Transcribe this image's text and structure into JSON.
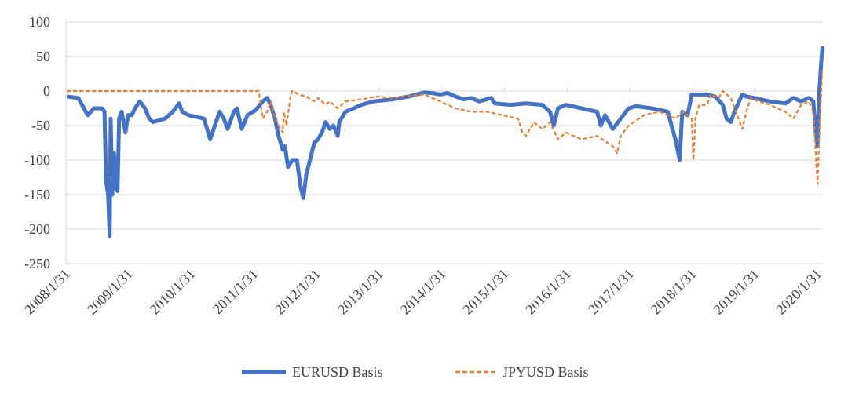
{
  "chart_data": {
    "type": "line",
    "title": "",
    "xlabel": "",
    "ylabel": "",
    "ylim": [
      -250,
      100
    ],
    "yticks": [
      100,
      50,
      0,
      -50,
      -100,
      -150,
      -200,
      -250
    ],
    "xlim": [
      "2008-01-31",
      "2020-03-02"
    ],
    "xtick_labels": [
      "2008/1/31",
      "2009/1/31",
      "2010/1/31",
      "2011/1/31",
      "2012/1/31",
      "2013/1/31",
      "2014/1/31",
      "2015/1/31",
      "2016/1/31",
      "2017/1/31",
      "2018/1/31",
      "2019/1/31",
      "2020/1/31"
    ],
    "xtick_dates": [
      "2008-01-31",
      "2009-01-31",
      "2010-01-31",
      "2011-01-31",
      "2012-01-31",
      "2013-01-31",
      "2014-01-31",
      "2015-01-31",
      "2016-01-31",
      "2017-01-31",
      "2018-01-31",
      "2019-01-31",
      "2020-01-31"
    ],
    "grid": true,
    "legend_position": "bottom",
    "series": [
      {
        "name": "EURUSD Basis",
        "color": "#4472C4",
        "style": "solid",
        "points": [
          [
            "2008-02-05",
            -8
          ],
          [
            "2008-04-12",
            -10
          ],
          [
            "2008-06-06",
            -35
          ],
          [
            "2008-07-12",
            -25
          ],
          [
            "2008-08-28",
            -25
          ],
          [
            "2008-09-12",
            -30
          ],
          [
            "2008-09-21",
            -130
          ],
          [
            "2008-10-03",
            -150
          ],
          [
            "2008-10-12",
            -210
          ],
          [
            "2008-10-18",
            -40
          ],
          [
            "2008-10-27",
            -150
          ],
          [
            "2008-11-06",
            -90
          ],
          [
            "2008-11-18",
            -140
          ],
          [
            "2008-11-27",
            -145
          ],
          [
            "2008-12-06",
            -40
          ],
          [
            "2008-12-21",
            -30
          ],
          [
            "2009-01-12",
            -60
          ],
          [
            "2009-01-27",
            -35
          ],
          [
            "2009-02-18",
            -35
          ],
          [
            "2009-03-09",
            -25
          ],
          [
            "2009-04-06",
            -15
          ],
          [
            "2009-05-06",
            -25
          ],
          [
            "2009-05-31",
            -40
          ],
          [
            "2009-06-21",
            -45
          ],
          [
            "2009-08-31",
            -40
          ],
          [
            "2009-10-15",
            -30
          ],
          [
            "2009-11-21",
            -18
          ],
          [
            "2009-12-09",
            -30
          ],
          [
            "2010-01-15",
            -35
          ],
          [
            "2010-04-15",
            -40
          ],
          [
            "2010-05-09",
            -60
          ],
          [
            "2010-05-21",
            -70
          ],
          [
            "2010-06-24",
            -45
          ],
          [
            "2010-07-15",
            -30
          ],
          [
            "2010-08-09",
            -40
          ],
          [
            "2010-08-31",
            -55
          ],
          [
            "2010-10-06",
            -30
          ],
          [
            "2010-10-24",
            -25
          ],
          [
            "2010-11-21",
            -55
          ],
          [
            "2010-12-24",
            -35
          ],
          [
            "2011-02-09",
            -28
          ],
          [
            "2011-03-24",
            -15
          ],
          [
            "2011-04-18",
            -10
          ],
          [
            "2011-05-09",
            -20
          ],
          [
            "2011-06-03",
            -40
          ],
          [
            "2011-06-24",
            -65
          ],
          [
            "2011-07-18",
            -85
          ],
          [
            "2011-07-31",
            -80
          ],
          [
            "2011-08-18",
            -110
          ],
          [
            "2011-09-12",
            -100
          ],
          [
            "2011-10-09",
            -100
          ],
          [
            "2011-10-31",
            -140
          ],
          [
            "2011-11-15",
            -155
          ],
          [
            "2011-12-03",
            -120
          ],
          [
            "2011-12-24",
            -100
          ],
          [
            "2012-01-18",
            -75
          ],
          [
            "2012-02-09",
            -70
          ],
          [
            "2012-03-03",
            -60
          ],
          [
            "2012-03-24",
            -45
          ],
          [
            "2012-04-18",
            -55
          ],
          [
            "2012-05-09",
            -50
          ],
          [
            "2012-06-03",
            -65
          ],
          [
            "2012-06-12",
            -45
          ],
          [
            "2012-07-18",
            -30
          ],
          [
            "2012-09-03",
            -25
          ],
          [
            "2012-10-18",
            -20
          ],
          [
            "2012-12-27",
            -15
          ],
          [
            "2013-04-18",
            -12
          ],
          [
            "2013-07-21",
            -8
          ],
          [
            "2013-10-21",
            -2
          ],
          [
            "2013-12-06",
            -3
          ],
          [
            "2014-01-21",
            -5
          ],
          [
            "2014-03-06",
            -3
          ],
          [
            "2014-04-21",
            -8
          ],
          [
            "2014-06-06",
            -12
          ],
          [
            "2014-07-21",
            -10
          ],
          [
            "2014-09-06",
            -15
          ],
          [
            "2014-11-15",
            -10
          ],
          [
            "2014-12-06",
            -18
          ],
          [
            "2015-03-06",
            -20
          ],
          [
            "2015-06-06",
            -18
          ],
          [
            "2015-09-09",
            -20
          ],
          [
            "2015-10-24",
            -30
          ],
          [
            "2015-11-15",
            -50
          ],
          [
            "2015-12-09",
            -25
          ],
          [
            "2016-01-24",
            -20
          ],
          [
            "2016-04-24",
            -25
          ],
          [
            "2016-07-24",
            -30
          ],
          [
            "2016-08-15",
            -50
          ],
          [
            "2016-09-09",
            -35
          ],
          [
            "2016-10-24",
            -55
          ],
          [
            "2016-12-09",
            -40
          ],
          [
            "2017-01-24",
            -25
          ],
          [
            "2017-03-09",
            -22
          ],
          [
            "2017-06-09",
            -25
          ],
          [
            "2017-09-09",
            -30
          ],
          [
            "2017-10-24",
            -70
          ],
          [
            "2017-11-18",
            -100
          ],
          [
            "2017-12-03",
            -30
          ],
          [
            "2018-01-03",
            -35
          ],
          [
            "2018-01-27",
            -5
          ],
          [
            "2018-03-12",
            -5
          ],
          [
            "2018-04-27",
            -5
          ],
          [
            "2018-06-12",
            -8
          ],
          [
            "2018-07-27",
            -20
          ],
          [
            "2018-08-18",
            -40
          ],
          [
            "2018-09-12",
            -45
          ],
          [
            "2018-10-03",
            -30
          ],
          [
            "2018-11-18",
            -5
          ],
          [
            "2018-12-12",
            -8
          ],
          [
            "2019-01-27",
            -10
          ],
          [
            "2019-04-27",
            -15
          ],
          [
            "2019-07-27",
            -18
          ],
          [
            "2019-09-12",
            -10
          ],
          [
            "2019-10-27",
            -15
          ],
          [
            "2019-12-12",
            -10
          ],
          [
            "2020-01-06",
            -15
          ],
          [
            "2020-01-21",
            -60
          ],
          [
            "2020-01-31",
            -80
          ],
          [
            "2020-02-09",
            -5
          ],
          [
            "2020-02-21",
            40
          ],
          [
            "2020-02-29",
            65
          ]
        ]
      },
      {
        "name": "JPYUSD Basis",
        "color": "#ED7D31",
        "style": "dashed",
        "points": [
          [
            "2008-02-05",
            0
          ],
          [
            "2011-02-28",
            0
          ],
          [
            "2011-03-24",
            -40
          ],
          [
            "2011-04-18",
            -30
          ],
          [
            "2011-05-09",
            -15
          ],
          [
            "2011-06-03",
            -40
          ],
          [
            "2011-06-24",
            -50
          ],
          [
            "2011-07-18",
            -60
          ],
          [
            "2011-07-24",
            -30
          ],
          [
            "2011-08-09",
            -50
          ],
          [
            "2011-09-03",
            -5
          ],
          [
            "2011-09-12",
            0
          ],
          [
            "2011-10-18",
            -5
          ],
          [
            "2011-12-03",
            -8
          ],
          [
            "2012-01-18",
            -15
          ],
          [
            "2012-02-09",
            -10
          ],
          [
            "2012-03-24",
            -20
          ],
          [
            "2012-04-18",
            -15
          ],
          [
            "2012-06-03",
            -25
          ],
          [
            "2012-07-18",
            -15
          ],
          [
            "2012-10-18",
            -12
          ],
          [
            "2013-01-18",
            -8
          ],
          [
            "2013-04-18",
            -10
          ],
          [
            "2013-10-21",
            -5
          ],
          [
            "2014-01-21",
            -15
          ],
          [
            "2014-04-21",
            -25
          ],
          [
            "2014-07-21",
            -30
          ],
          [
            "2014-10-21",
            -30
          ],
          [
            "2015-01-21",
            -35
          ],
          [
            "2015-04-21",
            -40
          ],
          [
            "2015-05-15",
            -60
          ],
          [
            "2015-06-06",
            -65
          ],
          [
            "2015-07-21",
            -45
          ],
          [
            "2015-09-09",
            -55
          ],
          [
            "2015-10-24",
            -45
          ],
          [
            "2015-12-09",
            -70
          ],
          [
            "2016-01-24",
            -60
          ],
          [
            "2016-04-24",
            -70
          ],
          [
            "2016-07-24",
            -65
          ],
          [
            "2016-10-24",
            -80
          ],
          [
            "2016-11-18",
            -90
          ],
          [
            "2016-12-09",
            -65
          ],
          [
            "2017-01-24",
            -50
          ],
          [
            "2017-04-24",
            -35
          ],
          [
            "2017-07-24",
            -30
          ],
          [
            "2017-10-24",
            -40
          ],
          [
            "2017-12-12",
            -30
          ],
          [
            "2018-01-27",
            -40
          ],
          [
            "2018-02-06",
            -100
          ],
          [
            "2018-02-18",
            -40
          ],
          [
            "2018-03-12",
            -20
          ],
          [
            "2018-04-27",
            -20
          ],
          [
            "2018-05-18",
            -5
          ],
          [
            "2018-07-03",
            -10
          ],
          [
            "2018-07-27",
            0
          ],
          [
            "2018-09-12",
            -10
          ],
          [
            "2018-10-27",
            -40
          ],
          [
            "2018-11-18",
            -55
          ],
          [
            "2018-12-12",
            -30
          ],
          [
            "2019-01-06",
            -10
          ],
          [
            "2019-02-21",
            -15
          ],
          [
            "2019-04-27",
            -20
          ],
          [
            "2019-07-27",
            -30
          ],
          [
            "2019-09-12",
            -40
          ],
          [
            "2019-10-27",
            -20
          ],
          [
            "2019-12-12",
            -15
          ],
          [
            "2020-01-06",
            -30
          ],
          [
            "2020-01-31",
            -135
          ],
          [
            "2020-02-12",
            -50
          ],
          [
            "2020-02-27",
            30
          ]
        ]
      }
    ]
  }
}
